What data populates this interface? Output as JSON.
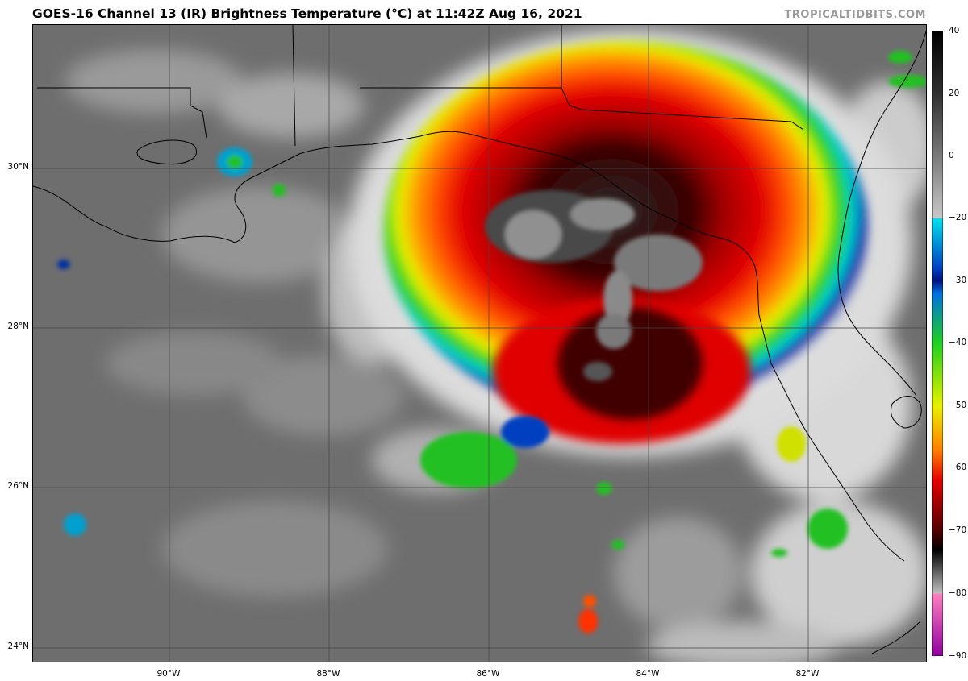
{
  "header": {
    "title": "GOES-16 Channel 13 (IR) Brightness Temperature (°C) at 11:42Z Aug 16, 2021",
    "credit": "TROPICALTIDBITS.COM"
  },
  "map": {
    "lat_labels": [
      "30°N",
      "28°N",
      "26°N",
      "24°N"
    ],
    "lon_labels": [
      "90°W",
      "88°W",
      "86°W",
      "84°W",
      "82°W"
    ],
    "colors": {
      "background_cloud_free": "#6e6e6e",
      "coldest_tops": "#2a2a2a",
      "storm_red": "#e00000",
      "storm_orange": "#ff8000",
      "storm_yellow": "#e8f000",
      "storm_green": "#20d020",
      "storm_cyan": "#00d0e0",
      "storm_blue": "#0020a0"
    }
  },
  "colorbar": {
    "labels": [
      "40",
      "20",
      "0",
      "−20",
      "−30",
      "−40",
      "−50",
      "−60",
      "−70",
      "−80",
      "−90"
    ],
    "units": "°C"
  }
}
